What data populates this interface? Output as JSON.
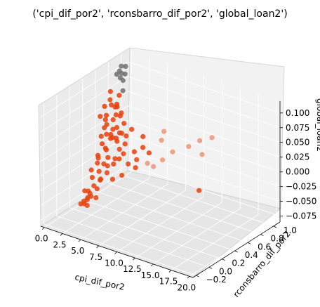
{
  "chart_data": {
    "type": "scatter",
    "projection": "3d",
    "title": "('cpi_dif_por2', 'rconsbarro_dif_por2', 'global_loan2')",
    "xlabel": "cpi_dif_por2",
    "ylabel": "rconsbarro_dif_por2",
    "zlabel": "global_loan2",
    "x_ticks": [
      "0.0",
      "2.5",
      "5.0",
      "7.5",
      "10.0",
      "12.5",
      "15.0",
      "17.5",
      "20.0"
    ],
    "y_ticks": [
      "−0.2",
      "0.0",
      "0.2",
      "0.4",
      "0.6",
      "0.8",
      "1.0"
    ],
    "z_ticks": [
      "−0.075",
      "−0.050",
      "−0.025",
      "0.000",
      "0.025",
      "0.050",
      "0.075",
      "0.100"
    ],
    "xlim": [
      -0.5,
      20.5
    ],
    "ylim": [
      -0.25,
      1.1
    ],
    "zlim": [
      -0.085,
      0.12
    ],
    "grid": true,
    "series": [
      {
        "color": "#e8410c",
        "points": [
          [
            1.0,
            0.6,
            0.05
          ],
          [
            1.5,
            0.55,
            0.04
          ],
          [
            2.0,
            0.65,
            0.03
          ],
          [
            0.8,
            0.7,
            0.06
          ],
          [
            1.2,
            0.58,
            0.02
          ],
          [
            2.3,
            0.62,
            0.01
          ],
          [
            1.7,
            0.52,
            0.0
          ],
          [
            0.9,
            0.48,
            -0.01
          ],
          [
            1.4,
            0.66,
            0.04
          ],
          [
            2.6,
            0.57,
            0.02
          ],
          [
            1.1,
            0.45,
            -0.02
          ],
          [
            1.9,
            0.6,
            0.03
          ],
          [
            0.6,
            0.55,
            0.05
          ],
          [
            2.1,
            0.5,
            -0.01
          ],
          [
            1.3,
            0.63,
            0.01
          ],
          [
            1.6,
            0.42,
            -0.03
          ],
          [
            2.4,
            0.68,
            0.02
          ],
          [
            0.7,
            0.62,
            0.04
          ],
          [
            1.8,
            0.47,
            -0.02
          ],
          [
            2.8,
            0.6,
            0.0
          ],
          [
            1.0,
            0.38,
            -0.04
          ],
          [
            1.5,
            0.35,
            -0.05
          ],
          [
            2.0,
            0.4,
            -0.04
          ],
          [
            0.9,
            0.33,
            -0.06
          ],
          [
            1.4,
            0.3,
            -0.06
          ],
          [
            1.7,
            0.36,
            -0.07
          ],
          [
            2.2,
            0.32,
            -0.05
          ],
          [
            1.2,
            0.28,
            -0.07
          ],
          [
            1.9,
            0.26,
            -0.06
          ],
          [
            1.1,
            0.24,
            -0.07
          ],
          [
            3.0,
            0.58,
            0.03
          ],
          [
            3.4,
            0.62,
            0.01
          ],
          [
            3.8,
            0.55,
            0.0
          ],
          [
            2.9,
            0.52,
            -0.01
          ],
          [
            3.2,
            0.66,
            0.02
          ],
          [
            4.0,
            0.6,
            -0.02
          ],
          [
            4.5,
            0.64,
            0.0
          ],
          [
            3.6,
            0.7,
            0.03
          ],
          [
            5.0,
            0.62,
            -0.01
          ],
          [
            4.2,
            0.48,
            -0.03
          ],
          [
            0.5,
            0.72,
            0.08
          ],
          [
            0.8,
            0.68,
            0.07
          ],
          [
            1.2,
            0.74,
            0.06
          ],
          [
            0.6,
            0.78,
            0.05
          ],
          [
            1.0,
            0.8,
            0.07
          ],
          [
            1.5,
            0.76,
            0.04
          ],
          [
            0.4,
            0.64,
            0.06
          ],
          [
            2.0,
            0.72,
            0.05
          ],
          [
            1.3,
            0.5,
            0.01
          ],
          [
            1.6,
            0.6,
            0.02
          ],
          [
            2.5,
            0.44,
            -0.03
          ],
          [
            2.7,
            0.52,
            -0.02
          ],
          [
            3.1,
            0.46,
            -0.04
          ],
          [
            5.5,
            0.66,
            0.01
          ],
          [
            6.0,
            0.7,
            0.0
          ],
          [
            5.2,
            0.58,
            -0.02
          ],
          [
            6.5,
            0.62,
            -0.01
          ],
          [
            4.8,
            0.74,
            0.02
          ],
          [
            2.2,
            0.56,
            0.02
          ],
          [
            1.4,
            0.54,
            0.0
          ],
          [
            0.7,
            0.4,
            -0.03
          ],
          [
            1.0,
            0.52,
            0.02
          ],
          [
            1.8,
            0.66,
            0.05
          ],
          [
            2.4,
            0.46,
            -0.02
          ],
          [
            1.6,
            0.7,
            0.06
          ],
          [
            2.9,
            0.66,
            0.04
          ],
          [
            3.3,
            0.54,
            -0.01
          ],
          [
            0.9,
            0.58,
            0.03
          ],
          [
            1.3,
            0.44,
            -0.01
          ],
          [
            2.1,
            0.38,
            -0.04
          ],
          [
            1.5,
            0.2,
            -0.07
          ],
          [
            1.8,
            0.22,
            -0.06
          ],
          [
            1.2,
            0.18,
            -0.07
          ],
          [
            2.0,
            0.19,
            -0.07
          ],
          [
            1.4,
            0.22,
            -0.05
          ],
          [
            7.0,
            0.78,
            0.02
          ],
          [
            7.5,
            0.6,
            -0.01
          ],
          [
            8.2,
            0.66,
            0.0
          ],
          [
            8.8,
            0.75,
            0.01
          ],
          [
            6.8,
            0.84,
            0.03
          ],
          [
            10.5,
            0.98,
            0.02
          ],
          [
            12.0,
            1.0,
            0.03
          ],
          [
            11.0,
            0.96,
            0.0
          ],
          [
            9.5,
            0.92,
            0.01
          ],
          [
            20.0,
            -0.1,
            0.05
          ]
        ]
      },
      {
        "color": "#707070",
        "points": [
          [
            0.4,
            0.9,
            0.11
          ],
          [
            0.6,
            0.88,
            0.1
          ],
          [
            0.5,
            0.86,
            0.105
          ],
          [
            0.8,
            0.92,
            0.11
          ],
          [
            0.7,
            0.85,
            0.095
          ],
          [
            1.0,
            0.89,
            0.1
          ],
          [
            0.9,
            0.87,
            0.09
          ],
          [
            0.3,
            0.84,
            0.1
          ],
          [
            1.5,
            0.8,
            0.08
          ]
        ]
      }
    ]
  }
}
